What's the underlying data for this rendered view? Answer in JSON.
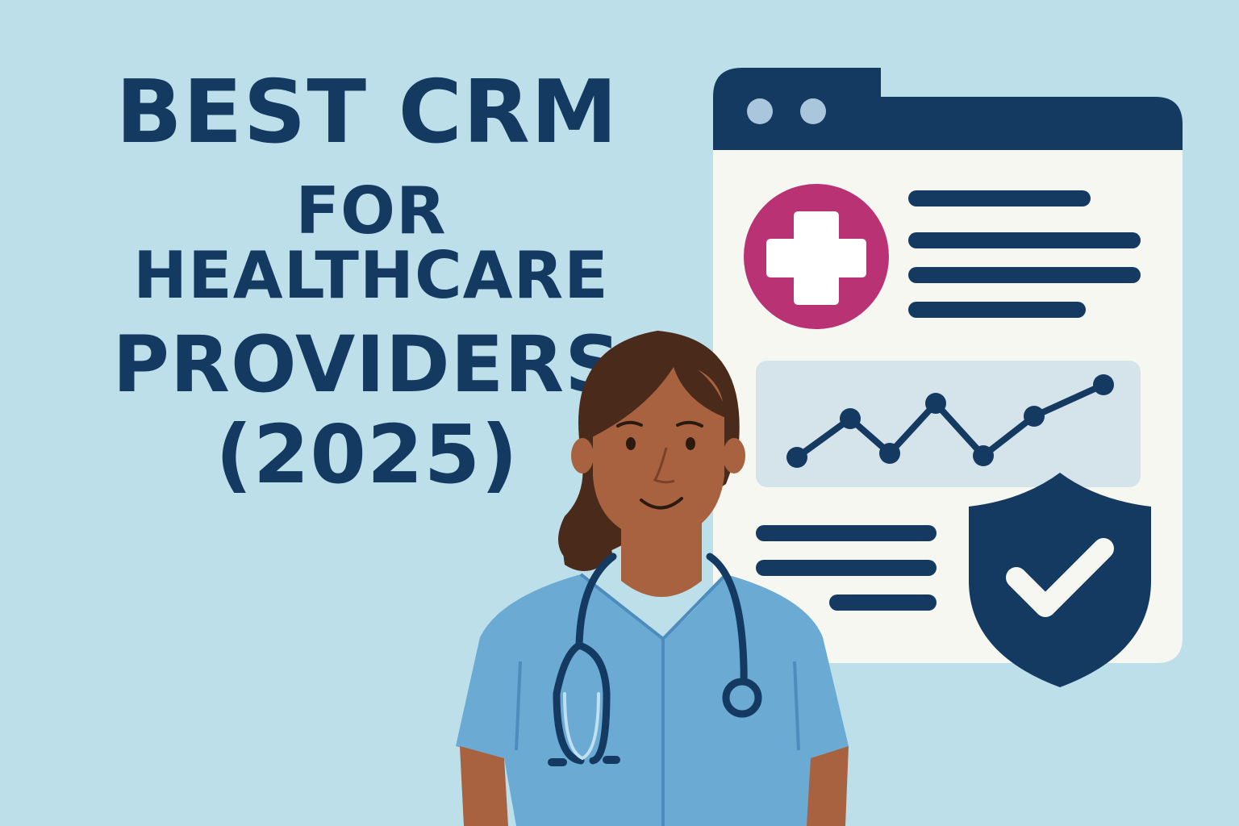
{
  "title": {
    "line1": "BEST CRM",
    "line2": "FOR HEALTHCARE",
    "line3": "PROVIDERS",
    "line4": "(2025)"
  },
  "colors": {
    "background": "#bddfe9",
    "navy": "#143a62",
    "magenta": "#b83274",
    "card": "#f7f7f2",
    "scrubs": "#6aaad3",
    "skin": "#a8623f",
    "hair": "#4a2a1a"
  },
  "icons": [
    "medical-cross-icon",
    "line-chart-icon",
    "shield-check-icon",
    "stethoscope-icon",
    "window-dots-icon"
  ]
}
